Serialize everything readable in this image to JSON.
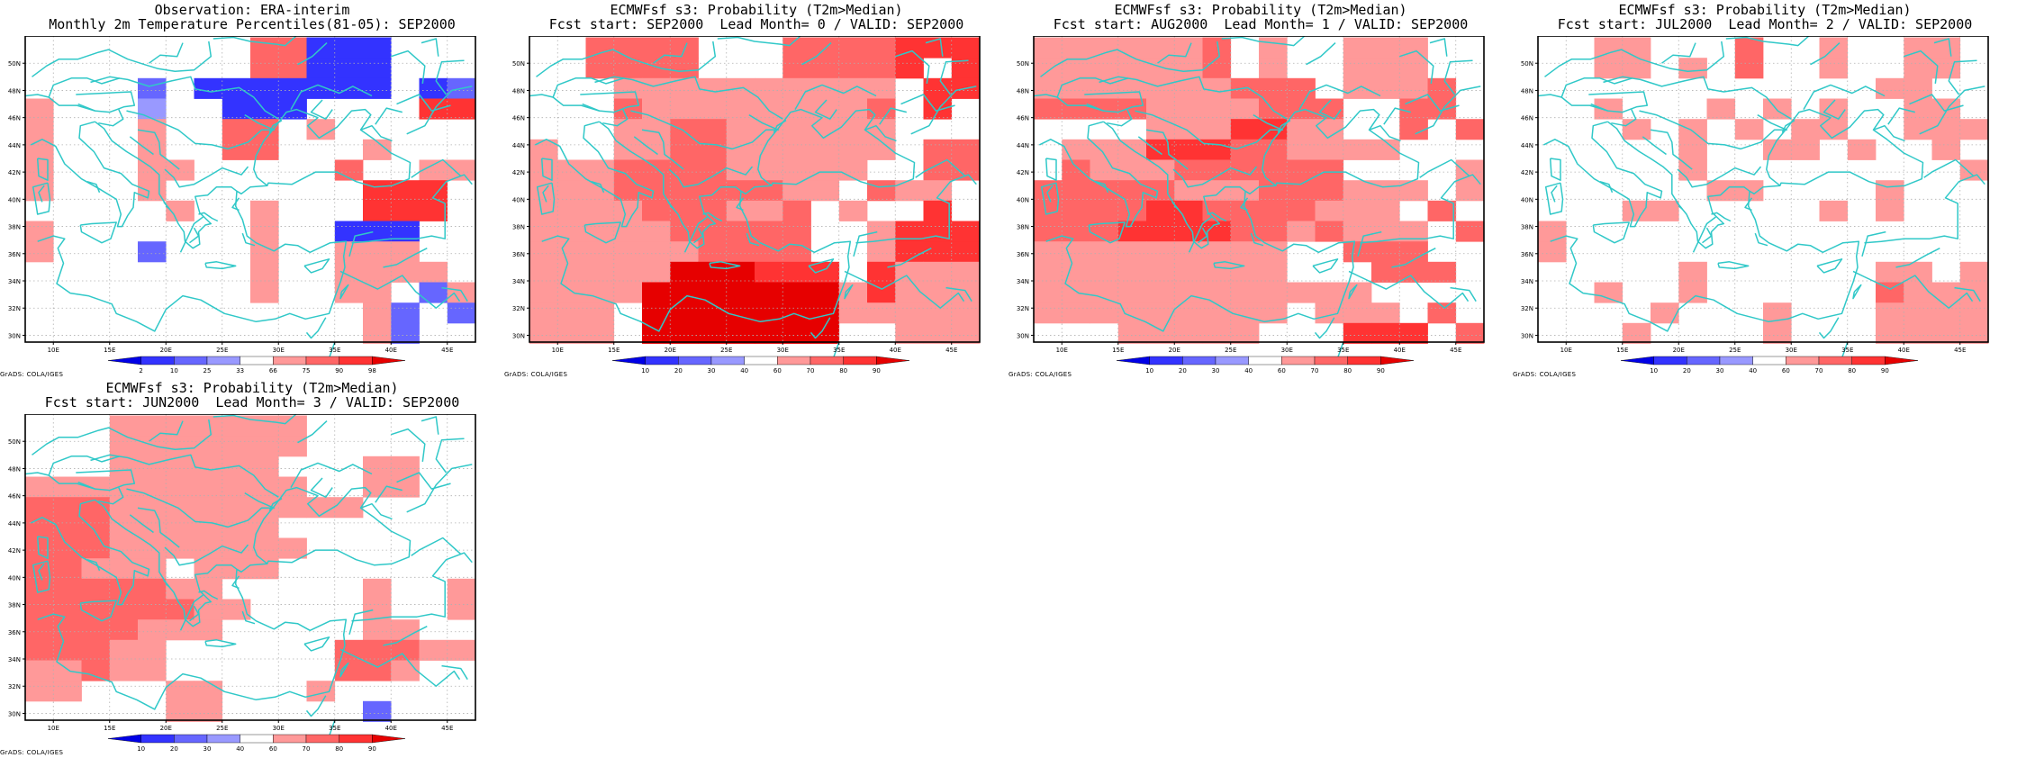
{
  "credit": "GrADS: COLA/IGES",
  "colors": {
    "coast": "#30c8c8",
    "frame": "#000000",
    "grid": "#b0b0b0"
  },
  "panels": [
    {
      "title1": "Observation: ERA-interim",
      "title2": "Monthly 2m Temperature Percentiles(81-05): SEP2000",
      "scale": "percentile",
      "legend": {
        "labels": [
          "2",
          "10",
          "25",
          "33",
          "66",
          "75",
          "90",
          "98"
        ],
        "colors": [
          "#0000e6",
          "#3333ff",
          "#6666ff",
          "#9999ff",
          "#ffffff",
          "#ff9999",
          "#ff6666",
          "#ff3333",
          "#e60000"
        ]
      },
      "grid": [
        "........77222...",
        "........77222...",
        "....3.2222222.23",
        "6...A..222....88",
        "6...6..77.6.....",
        "6...6..77...6...",
        "6...66.....7..66",
        "6...6.......888.",
        ".....6..6...888.",
        "6.......6..222..",
        "6...3...6..666..",
        "........6..6666.",
        "........6..66.36",
        "............63.3",
        "............63.."
      ]
    },
    {
      "title1": "ECMWFsf s3: Probability (T2m>Median)",
      "title2": "Fcst start: SEP2000  Lead Month= 0 / VALID: SEP2000",
      "scale": "prob",
      "legend": {
        "labels": [
          "10",
          "20",
          "30",
          "40",
          "60",
          "70",
          "80",
          "90"
        ],
        "colors": [
          "#0000e6",
          "#3333ff",
          "#6666ff",
          "#9999ff",
          "#ffffff",
          "#ff9999",
          "#ff6666",
          "#ff3333",
          "#e60000"
        ]
      },
      "grid": [
        "..7777...7777888",
        "..7777...77778.8",
        "...6666666666.88",
        "...7666666667.8.",
        "...6677666666...",
        "6..6677666666.77",
        "666777766666..77",
        "66677777766.766.",
        "6666777667.6..8.",
        "6666677777..6888",
        "6666667777..6888",
        "66666999888.8666",
        "6666999999968666",
        "666.999999966666",
        "666.9999999..666"
      ]
    },
    {
      "title1": "ECMWFsf s3: Probability (T2m>Median)",
      "title2": "Fcst start: AUG2000  Lead Month= 1 / VALID: SEP2000",
      "scale": "prob",
      "legend": {
        "labels": [
          "10",
          "20",
          "30",
          "40",
          "60",
          "70",
          "80",
          "90"
        ],
        "colors": [
          "#0000e6",
          "#3333ff",
          "#6666ff",
          "#9999ff",
          "#ffffff",
          "#ff9999",
          "#ff6666",
          "#ff3333",
          "#e60000"
        ]
      },
      "grid": [
        "6666667.6..666..",
        "6666667.6..666..",
        "6666666777.6667.",
        "77776666777..77.",
        "....6668866..7.7",
        ".666888776666...",
        ".7666777777....6",
        "77777666777666.6",
        "7777887777666.7.",
        "77788887767666.7",
        "666666666..777..",
        "666666666...777.",
        "666666666666....",
        "666666666.666.7.",
        "...66666...888.7"
      ]
    },
    {
      "title1": "ECMWFsf s3: Probability (T2m>Median)",
      "title2": "Fcst start: JUL2000  Lead Month= 2 / VALID: SEP2000",
      "scale": "prob",
      "legend": {
        "labels": [
          "10",
          "20",
          "30",
          "40",
          "60",
          "70",
          "80",
          "90"
        ],
        "colors": [
          "#0000e6",
          "#3333ff",
          "#6666ff",
          "#9999ff",
          "#ffffff",
          "#ff9999",
          "#ff6666",
          "#ff3333",
          "#e60000"
        ]
      },
      "grid": [
        "..66...7..6..66.",
        "..66.6.7..6..66.",
        "............66..",
        "..6...6.6.6..66.",
        "...6.6.6.66..666",
        ".....6..66.6..6.",
        ".....6.........6",
        "......66....6...",
        "...66.....6.6...",
        "6...............",
        "6...............",
        ".....6......66.6",
        "..6..6......7666",
        "....6...6...6666",
        "...6....6...6666"
      ]
    },
    {
      "title1": "ECMWFsf s3: Probability (T2m>Median)",
      "title2": "Fcst start: JUN2000  Lead Month= 3 / VALID: SEP2000",
      "scale": "prob",
      "legend": {
        "labels": [
          "10",
          "20",
          "30",
          "40",
          "60",
          "70",
          "80",
          "90"
        ],
        "colors": [
          "#0000e6",
          "#3333ff",
          "#6666ff",
          "#9999ff",
          "#ffffff",
          "#ff9999",
          "#ff6666",
          "#ff3333",
          "#e60000"
        ]
      },
      "grid": [
        "...6666666......",
        "...6666666......",
        "...666666...66..",
        "6666666666..66..",
        "777666666666....",
        "777666666.......",
        "7776666666......",
        "77666.666.......",
        "7777766.....6..6",
        "77777766....6..6",
        "7777666.....66..",
        "77766......77766",
        "66766......776..",
        "66...66...6.....",
        ".....66.....3..."
      ]
    }
  ],
  "axes": {
    "lon_labels": [
      "10E",
      "15E",
      "20E",
      "25E",
      "30E",
      "35E",
      "40E",
      "45E"
    ],
    "lat_labels": [
      "30N",
      "32N",
      "34N",
      "36N",
      "38N",
      "40N",
      "42N",
      "44N",
      "46N",
      "48N",
      "50N"
    ]
  }
}
